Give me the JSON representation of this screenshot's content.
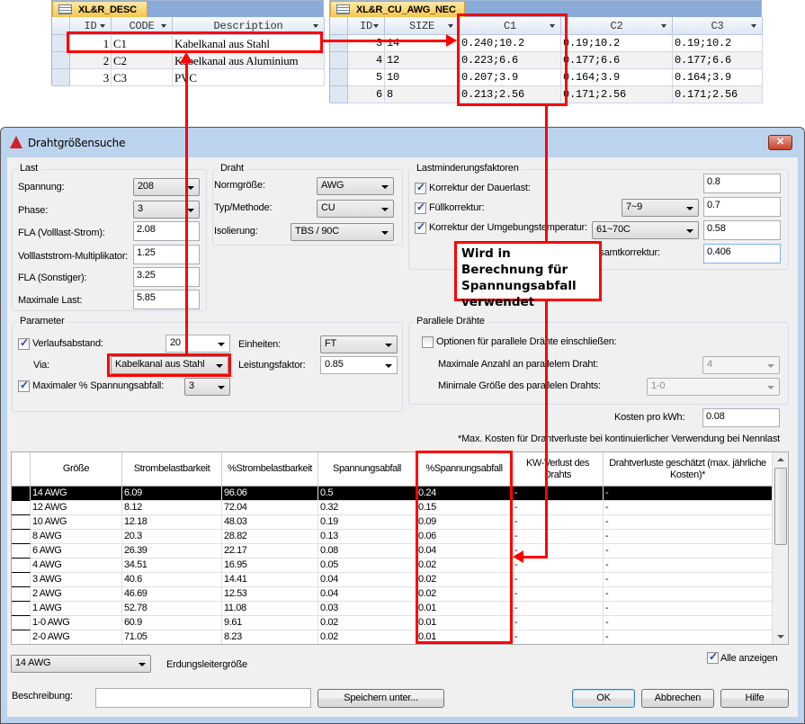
{
  "desc_table": {
    "tab": "XL&R_DESC",
    "columns": [
      "ID",
      "CODE",
      "Description"
    ],
    "rows": [
      [
        "1",
        "C1",
        "Kabelkanal aus Stahl"
      ],
      [
        "2",
        "C2",
        "Kabelkanal aus Aluminium"
      ],
      [
        "3",
        "C3",
        "PVC"
      ]
    ]
  },
  "nec_table": {
    "tab": "XL&R_CU_AWG_NEC",
    "columns": [
      "ID",
      "SIZE",
      "C1",
      "C2",
      "C3"
    ],
    "rows": [
      [
        "3",
        "14",
        "0.240;10.2",
        "0.19;10.2",
        "0.19;10.2"
      ],
      [
        "4",
        "12",
        "0.223;6.6",
        "0.177;6.6",
        "0.177;6.6"
      ],
      [
        "5",
        "10",
        "0.207;3.9",
        "0.164;3.9",
        "0.164;3.9"
      ],
      [
        "6",
        "8",
        "0.213;2.56",
        "0.171;2.56",
        "0.171;2.56"
      ]
    ]
  },
  "callout": {
    "text": "Wird in Berechnung für Spannungsabfall verwendet",
    "color": "#ff0000"
  },
  "dialog": {
    "title": "Drahtgrößensuche",
    "close_label": "✕",
    "last": {
      "title": "Last",
      "spannung_label": "Spannung:",
      "spannung": "208",
      "phase_label": "Phase:",
      "phase": "3",
      "fla_label": "FLA (Volllast-Strom):",
      "fla": "2.08",
      "mult_label": "Volllaststrom-Multiplikator:",
      "mult": "1.25",
      "fla_sonst_label": "FLA (Sonstiger):",
      "fla_sonst": "3.25",
      "max_last_label": "Maximale Last:",
      "max_last": "5.85"
    },
    "draht": {
      "title": "Draht",
      "norm_label": "Normgröße:",
      "norm": "AWG",
      "typ_label": "Typ/Methode:",
      "typ": "CU",
      "iso_label": "Isolierung:",
      "iso": "TBS / 90C"
    },
    "lmf": {
      "title": "Lastminderungsfaktoren",
      "dauer_label": "Korrektur der Dauerlast:",
      "dauer": "0.8",
      "fuell_label": "Füllkorrektur:",
      "fuell_range": "7~9",
      "fuell": "0.7",
      "temp_label": "Korrektur der Umgebungstemperatur:",
      "temp_range": "61~70C",
      "temp": "0.58",
      "gesamt_label": "Gesamtkorrektur:",
      "gesamt": "0.406"
    },
    "parameter": {
      "title": "Parameter",
      "verlauf_label": "Verlaufsabstand:",
      "verlauf": "20",
      "einheiten_label": "Einheiten:",
      "einheiten": "FT",
      "via_label": "Via:",
      "via": "Kabelkanal aus Stahl",
      "lf_label": "Leistungsfaktor:",
      "lf": "0.85",
      "maxsp_label": "Maximaler % Spannungsabfall:",
      "maxsp": "3"
    },
    "parallel": {
      "title": "Parallele Drähte",
      "opt_label": "Optionen für parallele Drähte einschließen:",
      "max_label": "Maximale Anzahl an parallelem Draht:",
      "max": "4",
      "min_label": "Minimale Größe des parallelen Drahts:",
      "min": "1-0"
    },
    "kosten_label": "Kosten pro kWh:",
    "kosten": "0.08",
    "footnote": "*Max. Kosten für Drahtverluste bei kontinuierlicher Verwendung bei Nennlast",
    "grid": {
      "columns": [
        "Größe",
        "Strombelastbarkeit",
        "%Strombelastbarkeit",
        "Spannungsabfall",
        "%Spannungsabfall",
        "KW-Verlust des Drahts",
        "Drahtverluste geschätzt (max. jährliche Kosten)*"
      ],
      "rows": [
        [
          "14 AWG",
          "6.09",
          "96.06",
          "0.5",
          "0.24",
          "-",
          "-"
        ],
        [
          "12 AWG",
          "8.12",
          "72.04",
          "0.32",
          "0.15",
          "-",
          "-"
        ],
        [
          "10 AWG",
          "12.18",
          "48.03",
          "0.19",
          "0.09",
          "-",
          "-"
        ],
        [
          "8 AWG",
          "20.3",
          "28.82",
          "0.13",
          "0.06",
          "-",
          "-"
        ],
        [
          "6 AWG",
          "26.39",
          "22.17",
          "0.08",
          "0.04",
          "-",
          "-"
        ],
        [
          "4 AWG",
          "34.51",
          "16.95",
          "0.05",
          "0.02",
          "-",
          "-"
        ],
        [
          "3 AWG",
          "40.6",
          "14.41",
          "0.04",
          "0.02",
          "-",
          "-"
        ],
        [
          "2 AWG",
          "46.69",
          "12.53",
          "0.04",
          "0.02",
          "-",
          "-"
        ],
        [
          "1 AWG",
          "52.78",
          "11.08",
          "0.03",
          "0.01",
          "-",
          "-"
        ],
        [
          "1-0 AWG",
          "60.9",
          "9.61",
          "0.02",
          "0.01",
          "-",
          "-"
        ],
        [
          "2-0 AWG",
          "71.05",
          "8.23",
          "0.02",
          "0.01",
          "-",
          "-"
        ]
      ],
      "selected_row": 0
    },
    "ground": "14 AWG",
    "ground_label": "Erdungsleitergröße",
    "alle_label": "Alle anzeigen",
    "beschreibung_label": "Beschreibung:",
    "beschreibung": "",
    "save_label": "Speichern unter...",
    "ok_label": "OK",
    "cancel_label": "Abbrechen",
    "help_label": "Hilfe"
  }
}
